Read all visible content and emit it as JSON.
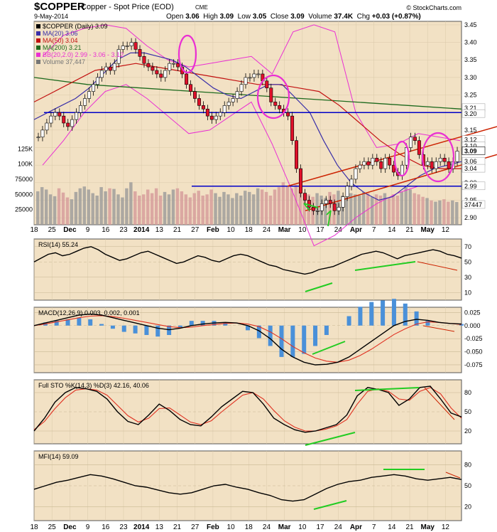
{
  "header": {
    "symbol": "$COPPER",
    "description": "Copper - Spot Price (EOD)",
    "exchange": "CME",
    "date": "9-May-2014",
    "brand": "© StockCharts.com",
    "open_label": "Open",
    "open": "3.06",
    "high_label": "High",
    "high": "3.09",
    "low_label": "Low",
    "low": "3.05",
    "close_label": "Close",
    "close": "3.09",
    "volume_label": "Volume",
    "volume": "37.4K",
    "chg_label": "Chg",
    "chg": "+0.03 (+0.87%)"
  },
  "colors": {
    "panel_bg": "#f2e1c4",
    "candle_up": "#ffffff",
    "candle_down": "#e0102a",
    "ma20": "#3a2fa8",
    "ma50": "#c21010",
    "ma200": "#1e6a1e",
    "bb": "#ea2fd3",
    "support": "#0000c8",
    "channel": "#cc2200",
    "highlight": "#ea2fd3",
    "trend": "#22cc22",
    "volume": "#9a9a9a"
  },
  "chart_data": [
    {
      "type": "candlestick",
      "legend": [
        "$COPPER (Daily) 3.09",
        "MA(20) 3.06",
        "MA(50) 3.04",
        "MA(200) 3.21",
        "BB(20,2.0) 2.99 - 3.06 - 3.12",
        "Volume 37,447"
      ],
      "x_ticks": [
        "18",
        "25",
        "Dec",
        "9",
        "16",
        "23",
        "2014",
        "13",
        "21",
        "27",
        "Feb",
        "10",
        "18",
        "24",
        "Mar",
        "10",
        "17",
        "24",
        "Apr",
        "7",
        "14",
        "21",
        "May",
        "12"
      ],
      "y_ticks": [
        "3.45",
        "3.40",
        "3.35",
        "3.30",
        "3.25",
        "3.20",
        "3.15",
        "3.10",
        "3.05",
        "3.00",
        "2.95",
        "2.90"
      ],
      "ylim": [
        2.88,
        3.46
      ],
      "volume_ticks": [
        "125K",
        "100K",
        "75000",
        "50000",
        "25000"
      ],
      "price_labels": [
        "3.21",
        "3.20",
        "3.12",
        "3.10",
        "3.09",
        "3.06",
        "3.04",
        "2.99",
        "37447"
      ],
      "closes": [
        3.13,
        3.15,
        3.17,
        3.19,
        3.2,
        3.19,
        3.17,
        3.16,
        3.18,
        3.2,
        3.22,
        3.24,
        3.26,
        3.28,
        3.3,
        3.32,
        3.33,
        3.32,
        3.34,
        3.38,
        3.39,
        3.39,
        3.4,
        3.38,
        3.36,
        3.34,
        3.33,
        3.32,
        3.31,
        3.3,
        3.32,
        3.34,
        3.34,
        3.33,
        3.31,
        3.28,
        3.26,
        3.24,
        3.22,
        3.21,
        3.19,
        3.18,
        3.19,
        3.2,
        3.22,
        3.23,
        3.24,
        3.26,
        3.28,
        3.3,
        3.3,
        3.31,
        3.31,
        3.29,
        3.27,
        3.23,
        3.22,
        3.21,
        3.2,
        3.19,
        3.12,
        3.04,
        2.97,
        2.95,
        2.93,
        2.92,
        2.92,
        2.94,
        2.95,
        2.94,
        2.92,
        2.93,
        2.96,
        2.99,
        3.01,
        3.04,
        3.05,
        3.06,
        3.05,
        3.07,
        3.06,
        3.04,
        3.07,
        3.05,
        3.03,
        3.02,
        3.05,
        3.1,
        3.13,
        3.12,
        3.08,
        3.05,
        3.06,
        3.04,
        3.06,
        3.07,
        3.06,
        3.04,
        3.06,
        3.09
      ],
      "ma20": [
        3.18,
        3.2,
        3.22,
        3.24,
        3.27,
        3.31,
        3.35,
        3.37,
        3.37,
        3.36,
        3.35,
        3.33,
        3.3,
        3.27,
        3.25,
        3.24,
        3.26,
        3.28,
        3.28,
        3.24,
        3.2,
        3.12,
        3.05,
        3.0,
        2.97,
        2.95,
        2.96,
        2.99,
        3.02,
        3.04,
        3.05,
        3.06
      ],
      "ma50": [
        3.23,
        3.26,
        3.29,
        3.32,
        3.33,
        3.34,
        3.33,
        3.32,
        3.31,
        3.3,
        3.29,
        3.28,
        3.28,
        3.27,
        3.26,
        3.22,
        3.17,
        3.12,
        3.08,
        3.05,
        3.04,
        3.04
      ],
      "ma200": [
        3.3,
        3.28,
        3.27,
        3.26,
        3.25,
        3.24,
        3.23,
        3.22,
        3.21
      ],
      "bb_upper": [
        3.36,
        3.42,
        3.44,
        3.45,
        3.44,
        3.39,
        3.35,
        3.33,
        3.34,
        3.35,
        3.36,
        3.31,
        3.43,
        3.45,
        3.43,
        3.2,
        3.1,
        3.11,
        3.14,
        3.13,
        3.12
      ],
      "bb_lower": [
        3.05,
        3.12,
        3.2,
        3.26,
        3.28,
        3.24,
        3.19,
        3.14,
        3.15,
        3.19,
        3.23,
        3.11,
        2.97,
        2.82,
        2.85,
        2.9,
        2.94,
        2.97,
        2.99,
        2.99,
        2.99
      ],
      "volume": [
        55000,
        62000,
        58000,
        50000,
        47000,
        60000,
        53000,
        45000,
        42000,
        54000,
        60000,
        63000,
        58000,
        52000,
        48000,
        62000,
        55000,
        60000,
        59000,
        50000,
        45000,
        60000,
        70000,
        55000,
        48000,
        50000,
        58000,
        52000,
        60000,
        48000,
        54000,
        50000,
        58000,
        60000,
        55000,
        50000,
        45000,
        52000,
        56000,
        48000,
        50000,
        58000,
        52000,
        46000,
        54000,
        50000,
        44000,
        52000,
        48000,
        56000,
        54000,
        50000,
        60000,
        58000,
        54000,
        48000,
        58000,
        62000,
        70000,
        64000,
        60000,
        66000,
        58000,
        52000,
        50000,
        46000,
        52000,
        48000,
        44000,
        54000,
        50000,
        56000,
        48000,
        45000,
        52000,
        50000,
        48000,
        54000,
        52000,
        46000,
        50000,
        48000,
        52000,
        45000,
        50000,
        48000,
        54000,
        62000,
        58000,
        52000,
        50000,
        46000,
        44000,
        40000,
        38000,
        40000,
        42000,
        38000,
        40000,
        37447
      ],
      "lines": [
        "3.20 support",
        "2.99 support",
        "rising channel",
        "circle highlights"
      ]
    },
    {
      "type": "line",
      "name": "RSI(14) 55.24",
      "y_ticks": [
        "70",
        "50",
        "30",
        "10"
      ],
      "ylim": [
        0,
        80
      ],
      "values": [
        50,
        55,
        60,
        62,
        58,
        60,
        64,
        68,
        70,
        66,
        60,
        56,
        52,
        54,
        58,
        62,
        64,
        60,
        56,
        52,
        48,
        50,
        54,
        58,
        56,
        52,
        50,
        54,
        58,
        60,
        58,
        54,
        50,
        46,
        44,
        40,
        38,
        36,
        34,
        36,
        40,
        42,
        44,
        48,
        52,
        56,
        60,
        62,
        64,
        62,
        58,
        54,
        58,
        60,
        62,
        64,
        66,
        64,
        60,
        58,
        55
      ]
    },
    {
      "type": "line",
      "name": "MACD(12,26,9) 0.003, 0.002, 0.001",
      "y_ticks": [
        "0.025",
        "0.000",
        "-0.025",
        "-0.050",
        "-0.075"
      ],
      "ylim": [
        -0.09,
        0.035
      ],
      "values": [
        0.0,
        0.005,
        0.01,
        0.015,
        0.02,
        0.022,
        0.02,
        0.015,
        0.01,
        0.005,
        0.0,
        -0.005,
        -0.008,
        -0.005,
        0.0,
        0.003,
        0.005,
        0.006,
        0.005,
        0.0,
        -0.01,
        -0.025,
        -0.045,
        -0.06,
        -0.07,
        -0.075,
        -0.074,
        -0.07,
        -0.06,
        -0.045,
        -0.03,
        -0.015,
        0.0,
        0.008,
        0.012,
        0.01,
        0.006,
        0.004,
        0.003
      ],
      "signal": [
        0.0,
        0.003,
        0.007,
        0.011,
        0.015,
        0.018,
        0.019,
        0.017,
        0.014,
        0.01,
        0.006,
        0.002,
        -0.002,
        -0.004,
        -0.003,
        0.0,
        0.002,
        0.004,
        0.005,
        0.003,
        -0.002,
        -0.012,
        -0.025,
        -0.04,
        -0.052,
        -0.062,
        -0.068,
        -0.07,
        -0.066,
        -0.057,
        -0.045,
        -0.031,
        -0.017,
        -0.006,
        0.003,
        0.007,
        0.006,
        0.004,
        0.002
      ]
    },
    {
      "type": "line",
      "name": "Full STO %K(14,3) %D(3) 42.16, 40.06",
      "y_ticks": [
        "80",
        "50",
        "20"
      ],
      "ylim": [
        0,
        100
      ],
      "values": [
        20,
        40,
        65,
        80,
        88,
        86,
        82,
        70,
        50,
        35,
        30,
        45,
        62,
        52,
        38,
        30,
        28,
        42,
        58,
        70,
        82,
        80,
        62,
        40,
        30,
        22,
        18,
        20,
        25,
        30,
        45,
        75,
        88,
        85,
        80,
        60,
        70,
        88,
        90,
        70,
        48,
        42
      ],
      "signal": [
        22,
        35,
        55,
        72,
        84,
        86,
        84,
        76,
        60,
        44,
        34,
        40,
        55,
        56,
        45,
        34,
        30,
        36,
        50,
        63,
        76,
        80,
        70,
        52,
        36,
        26,
        20,
        20,
        23,
        28,
        38,
        62,
        82,
        86,
        82,
        70,
        68,
        82,
        88,
        78,
        56,
        40
      ]
    },
    {
      "type": "line",
      "name": "MFI(14) 59.09",
      "y_ticks": [
        "80",
        "50",
        "20"
      ],
      "ylim": [
        0,
        100
      ],
      "values": [
        45,
        50,
        55,
        58,
        62,
        66,
        64,
        60,
        55,
        50,
        48,
        44,
        40,
        38,
        40,
        45,
        50,
        52,
        48,
        45,
        40,
        36,
        30,
        28,
        30,
        38,
        46,
        52,
        56,
        58,
        62,
        64,
        66,
        64,
        60,
        58,
        60,
        62,
        59
      ]
    }
  ]
}
